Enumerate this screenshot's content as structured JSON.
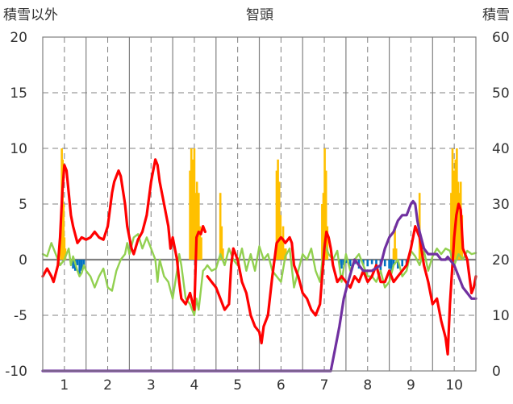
{
  "chart_data": {
    "type": "line",
    "title": "智頭",
    "left_axis_title": "積雪以外",
    "right_axis_title": "積雪",
    "ylim_left": [
      -10,
      20
    ],
    "ylim_right": [
      0,
      60
    ],
    "yticks_left": [
      "20",
      "15",
      "10",
      "5",
      "0",
      "-5",
      "-10"
    ],
    "yticks_right": [
      "60",
      "50",
      "40",
      "30",
      "20",
      "10",
      "0"
    ],
    "xlim": [
      0.5,
      10.5
    ],
    "xticks": [
      "1",
      "2",
      "3",
      "4",
      "5",
      "6",
      "7",
      "8",
      "9",
      "10"
    ],
    "grid": true,
    "colors": {
      "temperature": "#ff0000",
      "wind": "#92d050",
      "precip": "#ffc000",
      "sunshine": "#0070c0",
      "snow": "#7030a0",
      "zero_line": "#808080",
      "grid": "#808080"
    },
    "series": [
      {
        "key": "temperature",
        "axis": "left",
        "x": [
          0.5,
          0.6,
          0.7,
          0.75,
          0.85,
          0.9,
          0.95,
          1.0,
          1.05,
          1.1,
          1.15,
          1.2,
          1.3,
          1.4,
          1.5,
          1.6,
          1.7,
          1.8,
          1.9,
          2.0,
          2.1,
          2.15,
          2.2,
          2.25,
          2.3,
          2.4,
          2.45,
          2.5,
          2.55,
          2.6,
          2.7,
          2.8,
          2.9,
          3.0,
          3.05,
          3.1,
          3.15,
          3.2,
          3.3,
          3.4,
          3.45,
          3.5,
          3.6,
          3.65,
          3.7,
          3.8,
          3.9,
          4.0,
          4.05,
          4.1,
          4.15,
          4.2,
          4.25,
          null,
          4.3,
          4.4,
          4.5,
          4.6,
          4.7,
          4.8,
          4.85,
          4.9,
          5.0,
          5.1,
          5.2,
          5.3,
          5.4,
          5.5,
          5.55,
          5.6,
          5.7,
          5.8,
          5.9,
          6.0,
          6.05,
          6.1,
          6.2,
          6.25,
          6.3,
          6.4,
          6.5,
          6.6,
          6.7,
          6.8,
          6.9,
          7.0,
          7.05,
          7.1,
          7.15,
          7.2,
          7.3,
          7.4,
          7.5,
          7.6,
          7.7,
          7.8,
          7.9,
          8.0,
          8.1,
          8.2,
          8.3,
          8.4,
          8.5,
          8.6,
          8.7,
          8.8,
          8.9,
          9.0,
          9.1,
          9.2,
          9.3,
          9.4,
          9.5,
          9.6,
          9.7,
          9.8,
          9.85,
          9.9,
          10.0,
          10.05,
          10.1,
          10.15,
          10.2,
          10.3,
          10.4,
          10.45,
          10.5
        ],
        "y": [
          -1.5,
          -0.8,
          -1.5,
          -2.0,
          -0.5,
          2.0,
          6.0,
          8.5,
          8.0,
          6.0,
          4.0,
          3.0,
          1.5,
          2.0,
          1.8,
          2.0,
          2.5,
          2.0,
          1.8,
          3.0,
          6.0,
          7.0,
          7.5,
          8.0,
          7.5,
          5.0,
          3.0,
          2.0,
          1.0,
          0.5,
          1.8,
          2.5,
          4.0,
          7.0,
          8.0,
          9.0,
          8.5,
          7.0,
          5.0,
          3.0,
          1.0,
          2.0,
          0.0,
          -2.0,
          -3.5,
          -4.0,
          -3.0,
          -4.5,
          2.0,
          2.5,
          2.3,
          3.0,
          2.5,
          null,
          -1.5,
          -2.0,
          -2.5,
          -3.5,
          -4.5,
          -4.0,
          -0.5,
          1.0,
          0.0,
          -2.0,
          -3.0,
          -5.0,
          -6.0,
          -6.5,
          -7.5,
          -6.0,
          -5.0,
          -1.5,
          1.5,
          2.0,
          1.8,
          1.5,
          2.0,
          1.5,
          -0.5,
          -1.5,
          -3.0,
          -3.5,
          -4.5,
          -5.0,
          -4.0,
          1.0,
          2.5,
          2.0,
          1.0,
          -0.5,
          -2.0,
          -1.5,
          -2.0,
          -2.5,
          -1.5,
          -2.0,
          -1.0,
          -2.0,
          -1.5,
          -0.5,
          -2.0,
          -2.0,
          -1.0,
          -2.0,
          -1.5,
          -1.0,
          -0.5,
          1.0,
          3.0,
          2.0,
          -0.5,
          -2.0,
          -4.0,
          -3.5,
          -5.5,
          -7.0,
          -8.5,
          -4.0,
          2.0,
          4.0,
          5.0,
          4.5,
          1.0,
          0.0,
          -3.0,
          -2.5,
          -1.5
        ]
      },
      {
        "key": "wind",
        "axis": "left",
        "x": [
          0.5,
          0.6,
          0.7,
          0.8,
          0.9,
          1.0,
          1.1,
          1.15,
          1.2,
          1.3,
          1.35,
          1.4,
          1.45,
          1.5,
          1.6,
          1.7,
          1.8,
          1.9,
          2.0,
          2.1,
          2.2,
          2.3,
          2.4,
          2.45,
          2.5,
          2.6,
          2.7,
          2.8,
          2.9,
          3.0,
          3.1,
          3.15,
          3.2,
          3.3,
          3.4,
          3.5,
          3.6,
          3.65,
          3.7,
          3.8,
          3.9,
          4.0,
          4.05,
          4.1,
          4.2,
          4.25,
          4.3,
          4.4,
          4.5,
          4.6,
          4.7,
          4.8,
          4.9,
          5.0,
          5.1,
          5.2,
          5.3,
          5.4,
          5.5,
          5.6,
          5.7,
          5.8,
          5.9,
          6.0,
          6.1,
          6.2,
          6.3,
          6.4,
          6.5,
          6.6,
          6.7,
          6.8,
          6.9,
          7.0,
          7.1,
          7.2,
          7.3,
          7.4,
          7.5,
          7.6,
          7.7,
          7.8,
          7.9,
          8.0,
          8.1,
          8.2,
          8.3,
          8.4,
          8.5,
          8.6,
          8.7,
          8.8,
          8.9,
          9.0,
          9.1,
          9.2,
          9.3,
          9.4,
          9.5,
          9.6,
          9.7,
          9.8,
          9.9,
          10.0,
          10.1,
          10.2,
          10.3,
          10.4,
          10.5
        ],
        "y": [
          0.5,
          0.3,
          1.5,
          0.5,
          -0.5,
          0.0,
          1.0,
          -0.5,
          0.3,
          -1.0,
          -1.5,
          -1.2,
          -0.5,
          -1.0,
          -1.5,
          -2.5,
          -1.5,
          -0.8,
          -2.5,
          -2.8,
          -1.0,
          0.0,
          0.5,
          1.5,
          0.5,
          2.0,
          2.3,
          1.0,
          2.0,
          1.0,
          0.0,
          -2.0,
          0.0,
          -1.5,
          -2.0,
          -3.5,
          -1.0,
          0.5,
          -0.5,
          -3.5,
          -4.0,
          -5.0,
          -3.5,
          -4.5,
          -1.0,
          -0.8,
          -0.5,
          -1.0,
          -0.8,
          0.5,
          -0.5,
          1.0,
          0.0,
          -0.5,
          1.0,
          -1.0,
          0.5,
          -1.0,
          1.2,
          0.0,
          0.5,
          -1.0,
          -1.5,
          -2.0,
          0.3,
          1.0,
          -2.5,
          -1.0,
          0.5,
          0.0,
          1.0,
          -1.0,
          -2.0,
          1.5,
          0.5,
          0.0,
          0.8,
          -2.0,
          0.5,
          -1.0,
          0.0,
          0.5,
          -0.5,
          -1.5,
          -1.5,
          -2.0,
          -1.0,
          -2.5,
          -2.0,
          -0.5,
          0.0,
          -1.5,
          -1.0,
          0.8,
          0.3,
          -0.5,
          0.8,
          -1.0,
          0.3,
          1.0,
          0.5,
          1.0,
          0.8,
          -0.5,
          0.5,
          0.0,
          0.8,
          0.5,
          0.6
        ]
      },
      {
        "key": "precip",
        "axis": "left",
        "render": "bars",
        "x": [
          0.92,
          0.94,
          0.96,
          0.98,
          1.0,
          1.02,
          3.9,
          3.93,
          3.96,
          4.0,
          4.03,
          4.06,
          4.1,
          4.13,
          4.16,
          4.6,
          4.63,
          4.66,
          5.9,
          5.93,
          5.96,
          5.99,
          6.02,
          6.05,
          6.08,
          6.11,
          6.95,
          6.98,
          7.01,
          7.04,
          7.07,
          8.6,
          8.63,
          8.66,
          9.2,
          9.23,
          9.93,
          9.96,
          10.0,
          10.03,
          10.06,
          10.09,
          10.12,
          10.15,
          10.18
        ],
        "y": [
          3,
          10,
          9,
          5,
          2,
          1,
          8,
          10,
          9,
          10,
          6,
          7,
          6,
          3,
          2,
          6,
          3,
          1,
          8,
          9,
          7,
          4,
          2,
          3,
          1,
          1,
          5,
          6,
          10,
          8,
          3,
          1,
          3,
          1,
          6,
          1,
          6,
          10,
          8,
          9,
          10,
          7,
          6,
          7,
          4
        ]
      },
      {
        "key": "sunshine",
        "axis": "left",
        "render": "bars",
        "x": [
          1.2,
          1.25,
          1.3,
          1.35,
          1.4,
          1.45,
          7.35,
          7.4,
          7.45,
          7.5,
          7.6,
          7.7,
          7.8,
          7.9,
          8.0,
          8.1,
          8.2,
          8.3,
          8.4,
          8.5,
          8.55,
          8.6,
          8.7,
          8.8,
          8.9
        ],
        "y": [
          -0.8,
          -1.0,
          -0.5,
          -1.5,
          -1.0,
          -0.7,
          -0.5,
          -0.8,
          -0.5,
          -0.3,
          -0.6,
          -0.4,
          -0.8,
          -0.5,
          -0.6,
          -0.4,
          -0.5,
          -1.0,
          -0.6,
          -0.8,
          -1.2,
          -0.5,
          -0.8,
          -0.6,
          -0.4
        ]
      },
      {
        "key": "snow",
        "axis": "right",
        "x": [
          0.5,
          7.15,
          7.25,
          7.35,
          7.45,
          7.55,
          7.7,
          7.9,
          8.1,
          8.3,
          8.4,
          8.5,
          8.6,
          8.7,
          8.8,
          8.9,
          8.95,
          9.0,
          9.05,
          9.1,
          9.15,
          9.2,
          9.3,
          9.4,
          9.5,
          9.6,
          9.7,
          9.8,
          9.85,
          9.9,
          10.0,
          10.1,
          10.2,
          10.3,
          10.4,
          10.5
        ],
        "y": [
          0,
          0,
          4,
          8,
          13,
          16,
          20,
          18,
          18,
          19,
          22,
          24,
          25,
          27,
          28,
          28,
          29,
          30,
          30.5,
          30,
          27,
          25,
          22,
          21,
          21,
          21,
          20,
          20,
          20.5,
          20,
          19,
          17,
          15,
          14,
          13,
          13
        ]
      }
    ]
  }
}
